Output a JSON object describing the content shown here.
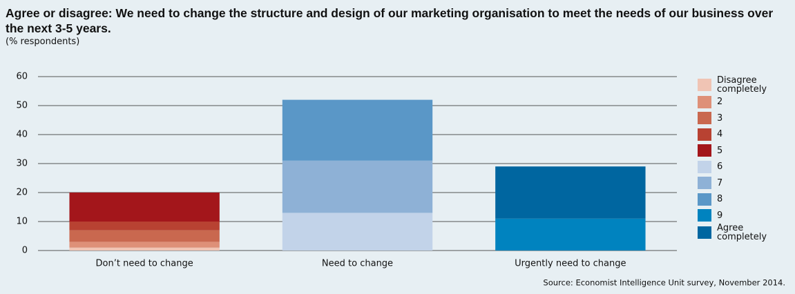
{
  "chart_data": {
    "type": "stacked_bar",
    "title": "Agree or disagree: We need to change the structure and design of our marketing organisation to meet the needs of our business over the next 3-5 years.",
    "subtitle": "(% respondents)",
    "source": "Source: Economist Intelligence Unit survey, November 2014.",
    "categories": [
      "Don’t need to change",
      "Need to change",
      "Urgently need to change"
    ],
    "series": [
      {
        "name": "Disagree completely",
        "color": "#f0c4b4",
        "values": [
          1,
          null,
          null
        ]
      },
      {
        "name": "2",
        "color": "#de9078",
        "values": [
          2,
          null,
          null
        ]
      },
      {
        "name": "3",
        "color": "#c9684f",
        "values": [
          4,
          null,
          null
        ]
      },
      {
        "name": "4",
        "color": "#b84232",
        "values": [
          3,
          null,
          null
        ]
      },
      {
        "name": "5",
        "color": "#a3161b",
        "values": [
          10,
          null,
          null
        ]
      },
      {
        "name": "6",
        "color": "#c2d3e9",
        "values": [
          null,
          13,
          null
        ]
      },
      {
        "name": "7",
        "color": "#8eb1d6",
        "values": [
          null,
          18,
          null
        ]
      },
      {
        "name": "8",
        "color": "#5a97c7",
        "values": [
          null,
          21,
          null
        ]
      },
      {
        "name": "9",
        "color": "#0083bf",
        "values": [
          null,
          null,
          11
        ]
      },
      {
        "name": "Agree completely",
        "color": "#0066a0",
        "values": [
          null,
          null,
          18
        ]
      }
    ],
    "ylim": [
      0,
      60
    ],
    "yticks": [
      0,
      10,
      20,
      30,
      40,
      50,
      60
    ],
    "grid": true,
    "legend": "right"
  }
}
